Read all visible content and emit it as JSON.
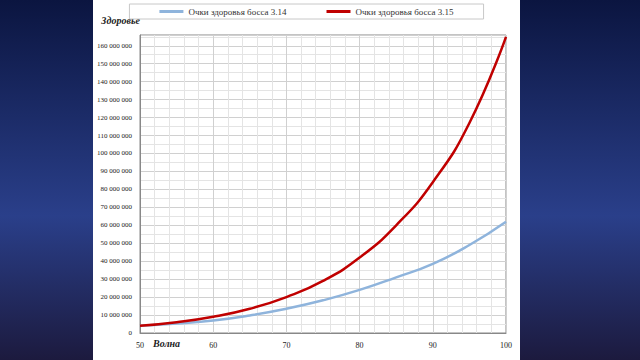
{
  "chart_data": {
    "type": "line",
    "x_label": "Волна",
    "y_label": "Здоровье",
    "x": [
      50,
      55,
      60,
      65,
      70,
      75,
      80,
      85,
      90,
      95,
      100
    ],
    "series": [
      {
        "name": "Очки здоровья босса 3.14",
        "color": "#8fb4dc",
        "values": [
          4000000,
          5300000,
          7000000,
          9800000,
          13500000,
          18200000,
          24000000,
          31000000,
          38500000,
          49000000,
          62000000
        ]
      },
      {
        "name": "Очки здоровья босса 3.15",
        "color": "#c00000",
        "values": [
          4000000,
          6000000,
          9000000,
          13500000,
          20000000,
          29000000,
          42000000,
          60000000,
          84000000,
          117000000,
          165000000
        ]
      }
    ],
    "xlim": [
      50,
      100
    ],
    "xticks": [
      50,
      60,
      70,
      80,
      90,
      100
    ],
    "ylim": [
      0,
      166000000
    ],
    "yticks": [
      0,
      {
        "value": 10000000,
        "label": "10 000 000"
      },
      {
        "value": 20000000,
        "label": "20 000 000"
      },
      {
        "value": 30000000,
        "label": "30 000 000"
      },
      {
        "value": 40000000,
        "label": "40 000 000"
      },
      {
        "value": 50000000,
        "label": "50 000 000"
      },
      {
        "value": 60000000,
        "label": "60 000 000"
      },
      {
        "value": 70000000,
        "label": "70 000 000"
      },
      {
        "value": 80000000,
        "label": "80 000 000"
      },
      {
        "value": 90000000,
        "label": "90 000 000"
      },
      {
        "value": 100000000,
        "label": "100 000 000"
      },
      {
        "value": 110000000,
        "label": "110 000 000"
      },
      {
        "value": 120000000,
        "label": "120 000 000"
      },
      {
        "value": 130000000,
        "label": "130 000 000"
      },
      {
        "value": 140000000,
        "label": "140 000 000"
      },
      {
        "value": 150000000,
        "label": "150 000 000"
      },
      {
        "value": 160000000,
        "label": "160 000 000"
      }
    ],
    "grid": true,
    "legend": "top"
  }
}
